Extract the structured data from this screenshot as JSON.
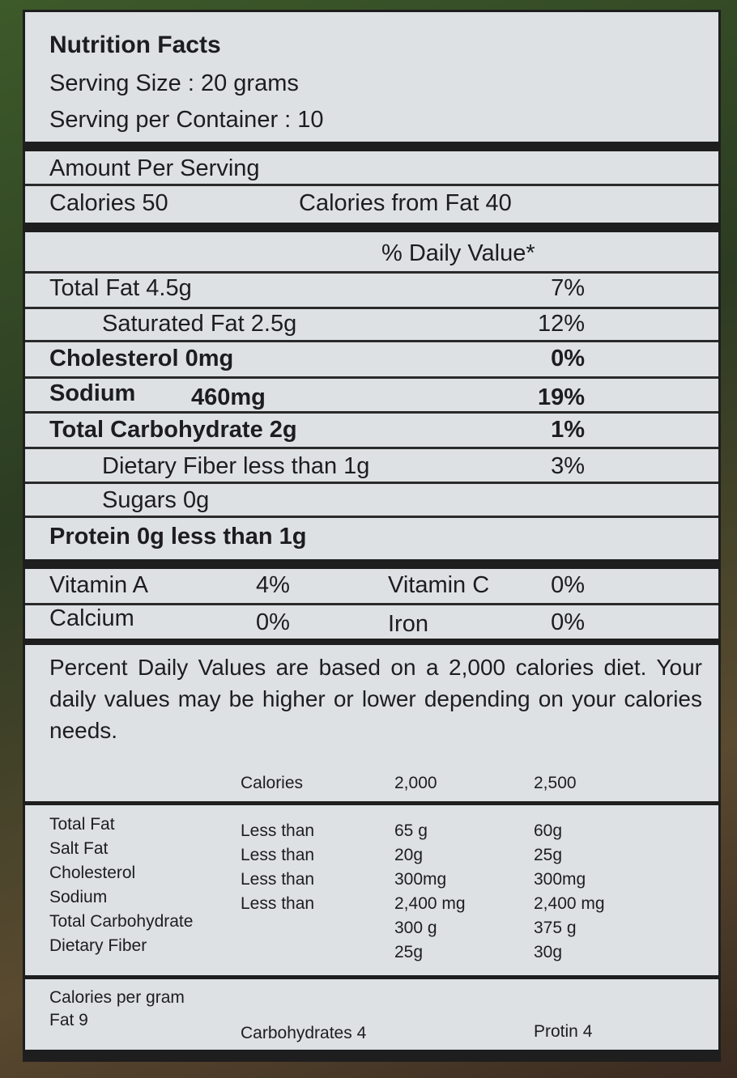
{
  "header": {
    "title": "Nutrition Facts",
    "serving_size": "Serving Size : 20 grams",
    "servings": "Serving per Container : 10"
  },
  "amount": {
    "label": "Amount Per Serving",
    "calories": "Calories 50",
    "calories_fat": "Calories from Fat 40"
  },
  "dv_header": "% Daily Value*",
  "nutrients": [
    {
      "name": "Total Fat 4.5g",
      "dv": "7%"
    },
    {
      "name": "Saturated Fat 2.5g",
      "dv": "12%"
    },
    {
      "name": "Cholesterol 0mg",
      "dv": "0%"
    },
    {
      "name": "Sodium",
      "amount": "460mg",
      "dv": "19%"
    },
    {
      "name": "Total Carbohydrate 2g",
      "dv": "1%"
    },
    {
      "name": "Dietary Fiber less than 1g",
      "dv": "3%"
    },
    {
      "name": "Sugars 0g"
    },
    {
      "name": "Protein 0g less than 1g"
    }
  ],
  "vitamins": [
    {
      "name": "Vitamin A",
      "dv": "4%"
    },
    {
      "name": "Vitamin C",
      "dv": "0%"
    },
    {
      "name": "Calcium",
      "dv": "0%"
    },
    {
      "name": "Iron",
      "dv": "0%"
    }
  ],
  "footnote": "Percent Daily Values are based on a 2,000 calories diet. Your daily values may be higher or lower depending on your calories needs.",
  "ref_table": {
    "header": [
      "Calories",
      "2,000",
      "2,500"
    ],
    "rows": [
      [
        "Total Fat",
        "Less than",
        "65 g",
        "60g"
      ],
      [
        "Salt Fat",
        "Less than",
        "20g",
        "25g"
      ],
      [
        "Cholesterol",
        "Less than",
        "300mg",
        "300mg"
      ],
      [
        "Sodium",
        "Less than",
        "2,400 mg",
        "2,400 mg"
      ],
      [
        "Total Carbohydrate",
        "",
        "300 g",
        "375 g"
      ],
      [
        "Dietary Fiber",
        "",
        "25g",
        "30g"
      ]
    ]
  },
  "per_gram": {
    "label": "Calories per gram",
    "fat": "Fat 9",
    "carbs": "Carbohydrates 4",
    "protein": "Protin 4"
  }
}
